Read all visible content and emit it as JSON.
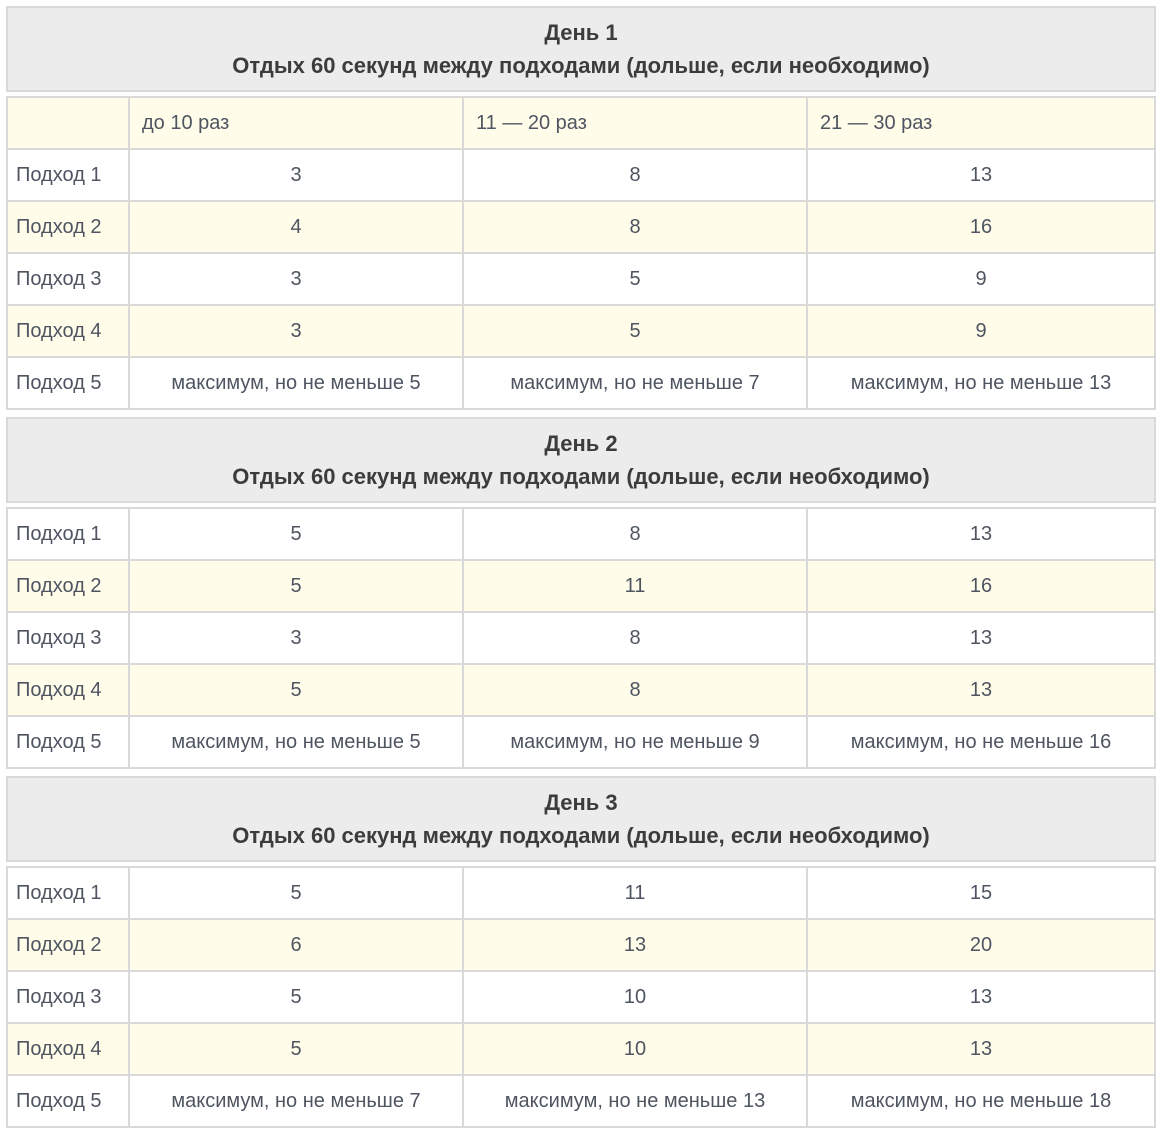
{
  "colors": {
    "section_header_bg": "#ececec",
    "stripe_bg": "#fffdea",
    "border": "#d9d9d9",
    "cell_text": "#4e5561",
    "header_text": "#3c3c3c"
  },
  "chart_data": [
    {
      "type": "table",
      "title": "День 1",
      "subtitle": "Отдых 60 секунд между подходами (дольше, если необходимо)",
      "columns": [
        "",
        "до 10 раз",
        "11 — 20 раз",
        "21 — 30 раз"
      ],
      "rows": [
        {
          "label": "Подход 1",
          "values": [
            "3",
            "8",
            "13"
          ]
        },
        {
          "label": "Подход 2",
          "values": [
            "4",
            "8",
            "16"
          ]
        },
        {
          "label": "Подход 3",
          "values": [
            "3",
            "5",
            "9"
          ]
        },
        {
          "label": "Подход 4",
          "values": [
            "3",
            "5",
            "9"
          ]
        },
        {
          "label": "Подход 5",
          "values": [
            "максимум, но не меньше 5",
            "максимум, но не меньше 7",
            "максимум, но не меньше 13"
          ]
        }
      ]
    },
    {
      "type": "table",
      "title": "День 2",
      "subtitle": "Отдых 60 секунд между подходами (дольше, если необходимо)",
      "rows": [
        {
          "label": "Подход 1",
          "values": [
            "5",
            "8",
            "13"
          ]
        },
        {
          "label": "Подход 2",
          "values": [
            "5",
            "11",
            "16"
          ]
        },
        {
          "label": "Подход 3",
          "values": [
            "3",
            "8",
            "13"
          ]
        },
        {
          "label": "Подход 4",
          "values": [
            "5",
            "8",
            "13"
          ]
        },
        {
          "label": "Подход 5",
          "values": [
            "максимум, но не меньше 5",
            "максимум, но не меньше 9",
            "максимум, но не меньше 16"
          ]
        }
      ]
    },
    {
      "type": "table",
      "title": "День 3",
      "subtitle": "Отдых 60 секунд между подходами (дольше, если необходимо)",
      "rows": [
        {
          "label": "Подход 1",
          "values": [
            "5",
            "11",
            "15"
          ]
        },
        {
          "label": "Подход 2",
          "values": [
            "6",
            "13",
            "20"
          ]
        },
        {
          "label": "Подход 3",
          "values": [
            "5",
            "10",
            "13"
          ]
        },
        {
          "label": "Подход 4",
          "values": [
            "5",
            "10",
            "13"
          ]
        },
        {
          "label": "Подход 5",
          "values": [
            "максимум, но не меньше 7",
            "максимум, но не меньше 13",
            "максимум, но не меньше 18"
          ]
        }
      ]
    }
  ]
}
